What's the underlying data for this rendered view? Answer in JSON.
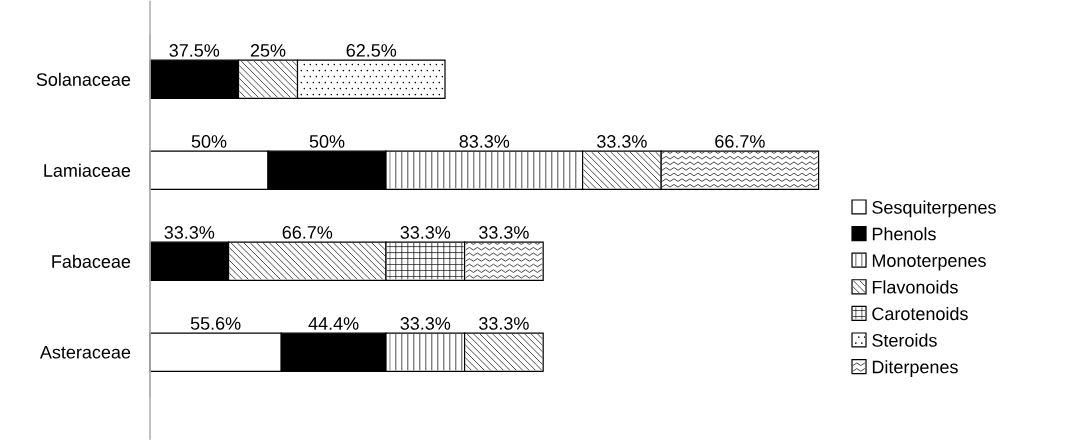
{
  "chart_data": {
    "type": "bar",
    "orientation": "horizontal",
    "stacked": true,
    "legend": "right",
    "tick_labels": "y",
    "categories": [
      "Solanaceae",
      "Lamiaceae",
      "Fabaceae",
      "Asteraceae"
    ],
    "series": [
      {
        "name": "Sesquiterpenes",
        "color": "#ffffff",
        "values": [
          null,
          50,
          null,
          55.6
        ],
        "value_labels": [
          null,
          "50%",
          null,
          "55.6%"
        ]
      },
      {
        "name": "Phenols",
        "color": "#000000",
        "values": [
          37.5,
          50,
          33.3,
          44.4
        ],
        "value_labels": [
          "37.5%",
          "50%",
          "33.3%",
          "44.4%"
        ]
      },
      {
        "name": "Monoterpenes",
        "color": "#ffffff",
        "values": [
          null,
          83.3,
          null,
          33.3
        ],
        "value_labels": [
          null,
          "83.3%",
          null,
          "33.3%"
        ]
      },
      {
        "name": "Flavonoids",
        "color": "#ffffff",
        "values": [
          25,
          33.3,
          66.7,
          33.3
        ],
        "value_labels": [
          "25%",
          "33.3%",
          "66.7%",
          "33.3%"
        ]
      },
      {
        "name": "Carotenoids",
        "color": "#ffffff",
        "values": [
          null,
          null,
          33.3,
          null
        ],
        "value_labels": [
          null,
          null,
          "33.3%",
          null
        ]
      },
      {
        "name": "Steroids",
        "color": "#ffffff",
        "values": [
          62.5,
          null,
          null,
          null
        ],
        "value_labels": [
          "62.5%",
          null,
          null,
          null
        ]
      },
      {
        "name": "Diterpenes",
        "color": "#ffffff",
        "values": [
          null,
          66.7,
          33.3,
          null
        ],
        "value_labels": [
          null,
          "66.7%",
          "33.3%",
          null
        ]
      }
    ]
  }
}
